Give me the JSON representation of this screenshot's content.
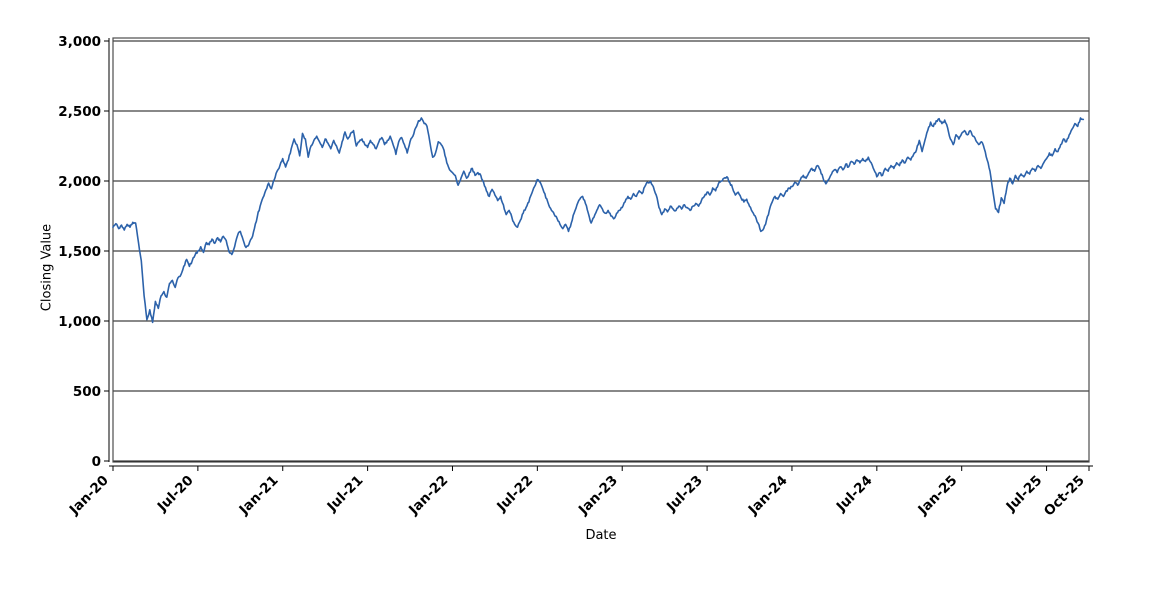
{
  "chart_data": {
    "type": "line",
    "title": "",
    "xlabel": "Date",
    "ylabel": "Closing Value",
    "legend": "none",
    "grid": "horizontal",
    "background": "#ffffff",
    "line_color": "#2c62aa",
    "axis_color": "#000000",
    "frame_color": "#4d4d4d",
    "ylim": [
      0,
      3000
    ],
    "y_ticks": [
      {
        "value": 0,
        "label": "0"
      },
      {
        "value": 500,
        "label": "500"
      },
      {
        "value": 1000,
        "label": "1,000"
      },
      {
        "value": 1500,
        "label": "1,500"
      },
      {
        "value": 2000,
        "label": "2,000"
      },
      {
        "value": 2500,
        "label": "2,500"
      },
      {
        "value": 3000,
        "label": "3,000"
      }
    ],
    "x_range_months": [
      0,
      69
    ],
    "x_ticks": [
      {
        "month": 0,
        "label": "Jan-20"
      },
      {
        "month": 6,
        "label": "Jul-20"
      },
      {
        "month": 12,
        "label": "Jan-21"
      },
      {
        "month": 18,
        "label": "Jul-21"
      },
      {
        "month": 24,
        "label": "Jan-22"
      },
      {
        "month": 30,
        "label": "Jul-22"
      },
      {
        "month": 36,
        "label": "Jan-23"
      },
      {
        "month": 42,
        "label": "Jul-23"
      },
      {
        "month": 48,
        "label": "Jan-24"
      },
      {
        "month": 54,
        "label": "Jul-24"
      },
      {
        "month": 60,
        "label": "Jan-25"
      },
      {
        "month": 66,
        "label": "Jul-25"
      },
      {
        "month": 69,
        "label": "Oct-25"
      }
    ],
    "series": [
      {
        "name": "Closing Value",
        "start_month": 0,
        "step_months": 0.2,
        "values": [
          1670,
          1695,
          1660,
          1685,
          1650,
          1690,
          1670,
          1705,
          1700,
          1560,
          1430,
          1180,
          1010,
          1080,
          990,
          1140,
          1090,
          1180,
          1210,
          1170,
          1270,
          1290,
          1240,
          1310,
          1330,
          1390,
          1440,
          1390,
          1430,
          1470,
          1500,
          1530,
          1490,
          1560,
          1545,
          1585,
          1555,
          1595,
          1565,
          1605,
          1575,
          1495,
          1475,
          1530,
          1610,
          1640,
          1580,
          1525,
          1545,
          1590,
          1660,
          1745,
          1820,
          1880,
          1935,
          1985,
          1945,
          2010,
          2070,
          2110,
          2160,
          2100,
          2150,
          2230,
          2300,
          2260,
          2180,
          2340,
          2300,
          2170,
          2250,
          2290,
          2320,
          2280,
          2240,
          2300,
          2270,
          2230,
          2290,
          2250,
          2200,
          2280,
          2350,
          2300,
          2340,
          2360,
          2250,
          2280,
          2300,
          2260,
          2240,
          2290,
          2260,
          2230,
          2280,
          2310,
          2260,
          2290,
          2320,
          2260,
          2190,
          2280,
          2310,
          2260,
          2200,
          2280,
          2320,
          2380,
          2430,
          2450,
          2410,
          2390,
          2280,
          2170,
          2200,
          2280,
          2260,
          2220,
          2130,
          2080,
          2060,
          2040,
          1970,
          2020,
          2070,
          2020,
          2060,
          2090,
          2040,
          2060,
          2040,
          1990,
          1930,
          1890,
          1940,
          1900,
          1860,
          1890,
          1830,
          1760,
          1790,
          1740,
          1690,
          1670,
          1720,
          1770,
          1810,
          1850,
          1910,
          1960,
          2010,
          1990,
          1940,
          1880,
          1830,
          1790,
          1760,
          1730,
          1690,
          1660,
          1690,
          1640,
          1700,
          1770,
          1830,
          1870,
          1890,
          1840,
          1770,
          1700,
          1740,
          1790,
          1830,
          1800,
          1770,
          1790,
          1750,
          1730,
          1770,
          1790,
          1810,
          1850,
          1890,
          1870,
          1910,
          1890,
          1930,
          1910,
          1960,
          1990,
          2000,
          1960,
          1900,
          1810,
          1760,
          1800,
          1780,
          1820,
          1800,
          1790,
          1820,
          1800,
          1830,
          1810,
          1790,
          1820,
          1840,
          1820,
          1860,
          1890,
          1920,
          1900,
          1950,
          1930,
          1980,
          2000,
          2020,
          2030,
          1990,
          1950,
          1900,
          1920,
          1880,
          1850,
          1870,
          1820,
          1780,
          1750,
          1700,
          1640,
          1660,
          1720,
          1790,
          1850,
          1890,
          1870,
          1910,
          1890,
          1930,
          1950,
          1960,
          1990,
          1970,
          2010,
          2040,
          2020,
          2060,
          2090,
          2070,
          2110,
          2080,
          2020,
          1980,
          2010,
          2050,
          2080,
          2060,
          2100,
          2080,
          2120,
          2100,
          2140,
          2120,
          2150,
          2130,
          2160,
          2140,
          2170,
          2130,
          2080,
          2030,
          2060,
          2040,
          2090,
          2070,
          2110,
          2090,
          2130,
          2110,
          2150,
          2130,
          2170,
          2150,
          2190,
          2220,
          2290,
          2210,
          2290,
          2360,
          2420,
          2390,
          2430,
          2445,
          2410,
          2435,
          2380,
          2300,
          2260,
          2330,
          2300,
          2340,
          2360,
          2330,
          2360,
          2320,
          2290,
          2260,
          2280,
          2230,
          2150,
          2070,
          1930,
          1800,
          1775,
          1880,
          1840,
          1960,
          2020,
          1980,
          2040,
          2010,
          2050,
          2030,
          2070,
          2050,
          2090,
          2070,
          2110,
          2090,
          2130,
          2160,
          2200,
          2180,
          2230,
          2210,
          2260,
          2300,
          2280,
          2330,
          2370,
          2410,
          2390,
          2450,
          2440
        ]
      }
    ]
  }
}
